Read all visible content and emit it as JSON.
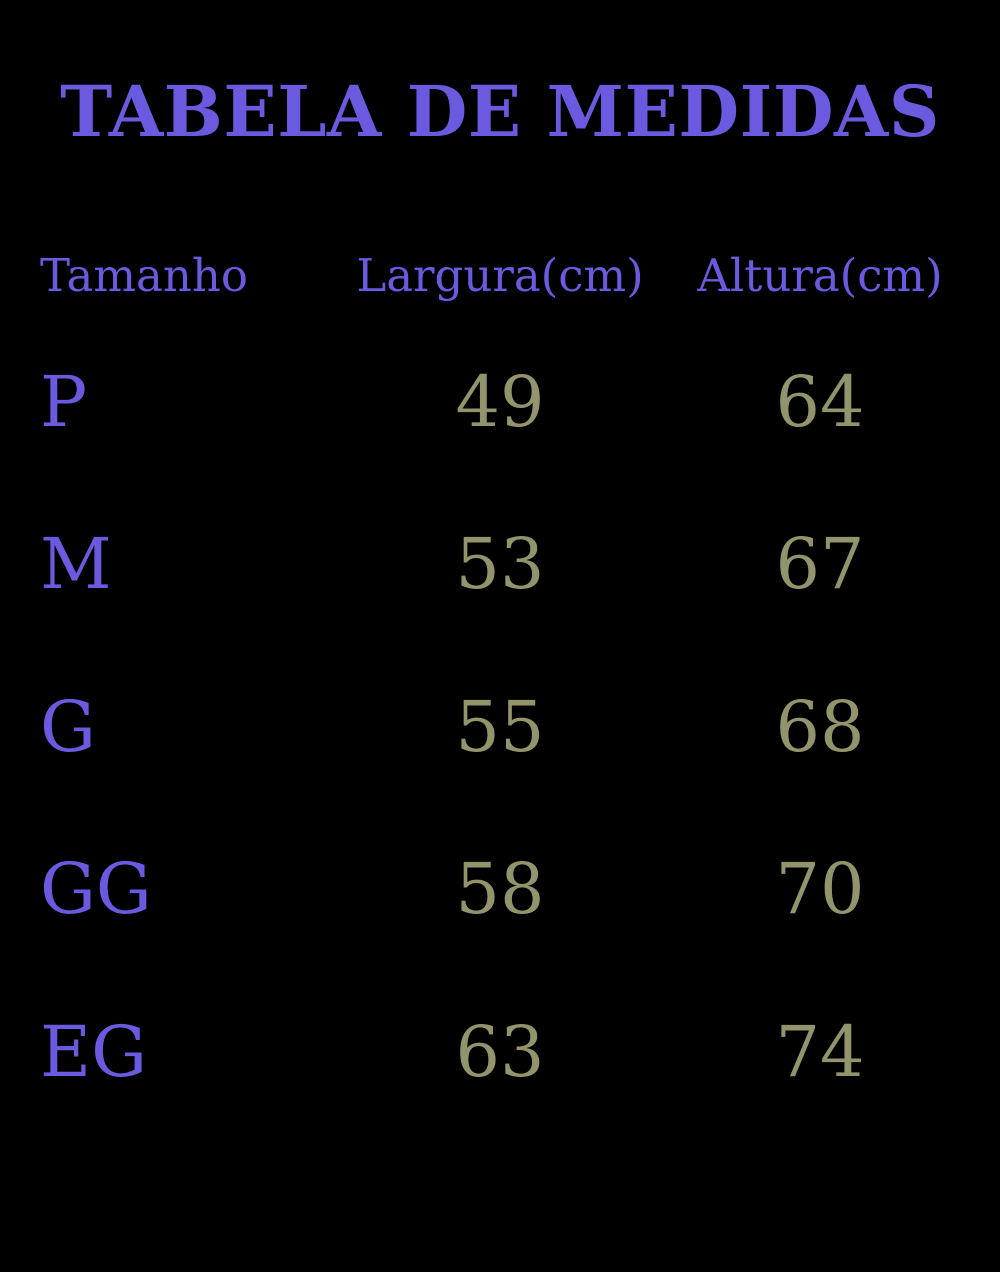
{
  "title": "TABELA DE MEDIDAS",
  "table": {
    "headers": [
      "Tamanho",
      "Largura(cm)",
      "Altura(cm)"
    ],
    "rows": [
      {
        "size": "P",
        "largura": "49",
        "altura": "64"
      },
      {
        "size": "M",
        "largura": "53",
        "altura": "67"
      },
      {
        "size": "G",
        "largura": "55",
        "altura": "68"
      },
      {
        "size": "GG",
        "largura": "58",
        "altura": "70"
      },
      {
        "size": "EG",
        "largura": "63",
        "altura": "74"
      }
    ]
  },
  "colors": {
    "background": "#000000",
    "heading_purple": "#6A5AE0",
    "value_olive": "#94946C"
  },
  "chart_data": {
    "type": "table",
    "title": "TABELA DE MEDIDAS",
    "columns": [
      "Tamanho",
      "Largura(cm)",
      "Altura(cm)"
    ],
    "rows": [
      [
        "P",
        49,
        64
      ],
      [
        "M",
        53,
        67
      ],
      [
        "G",
        55,
        68
      ],
      [
        "GG",
        58,
        70
      ],
      [
        "EG",
        63,
        74
      ]
    ]
  }
}
